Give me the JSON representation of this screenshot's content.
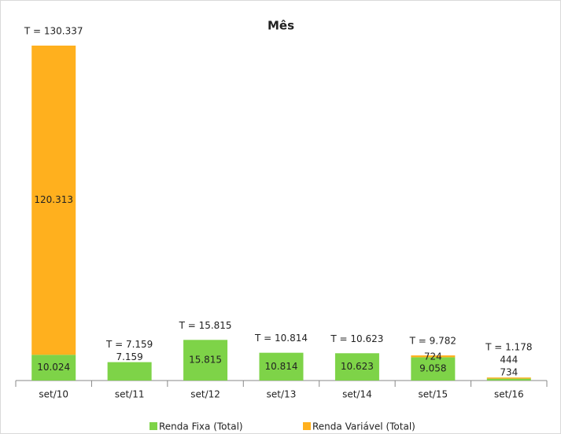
{
  "chart_data": {
    "type": "stacked_bar",
    "title": "Mês",
    "categories": [
      "set/10",
      "set/11",
      "set/12",
      "set/13",
      "set/14",
      "set/15",
      "set/16"
    ],
    "series": [
      {
        "name": "Renda Fixa (Total)",
        "color": "#7ed348",
        "values": [
          10024,
          7159,
          15815,
          10814,
          10623,
          9058,
          734
        ],
        "value_labels": [
          "10.024",
          "7.159",
          "15.815",
          "10.814",
          "10.623",
          "9.058",
          "734"
        ]
      },
      {
        "name": "Renda Variável (Total)",
        "color": "#ffb01e",
        "values": [
          120313,
          null,
          null,
          null,
          null,
          724,
          444
        ],
        "value_labels": [
          "120.313",
          null,
          null,
          null,
          null,
          "724",
          "444"
        ]
      }
    ],
    "total_labels": [
      "T = 130.337",
      "T = 7.159",
      "T = 15.815",
      "T = 10.814",
      "T = 10.623",
      "T = 9.782",
      "T = 1.178"
    ],
    "legend": "bottom"
  }
}
